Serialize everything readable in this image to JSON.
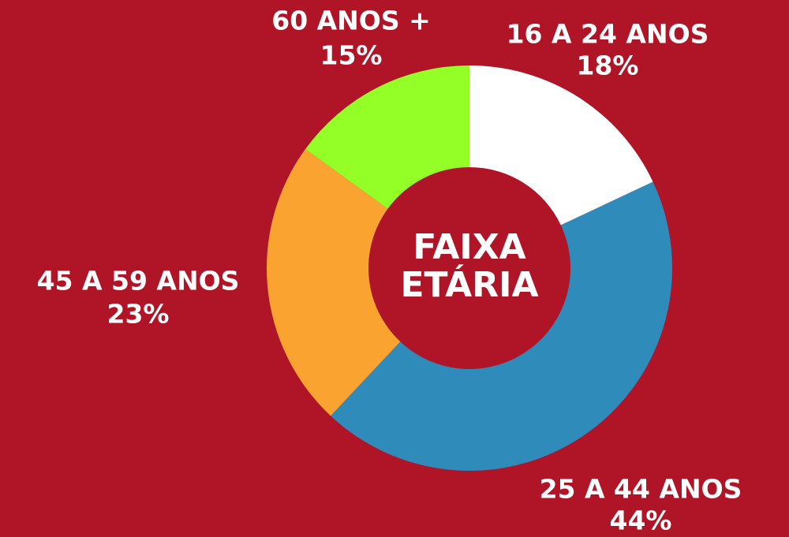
{
  "chart_data": {
    "type": "donut",
    "title": "FAIXA ETÁRIA",
    "categories": [
      "16 A 24 ANOS",
      "25 A 44 ANOS",
      "45 A 59 ANOS",
      "60 ANOS +"
    ],
    "values": [
      18,
      44,
      23,
      15
    ],
    "value_labels": [
      "18%",
      "44%",
      "23%",
      "15%"
    ],
    "colors": [
      "#ffffff",
      "#2e8bba",
      "#fba331",
      "#93ff27"
    ]
  }
}
